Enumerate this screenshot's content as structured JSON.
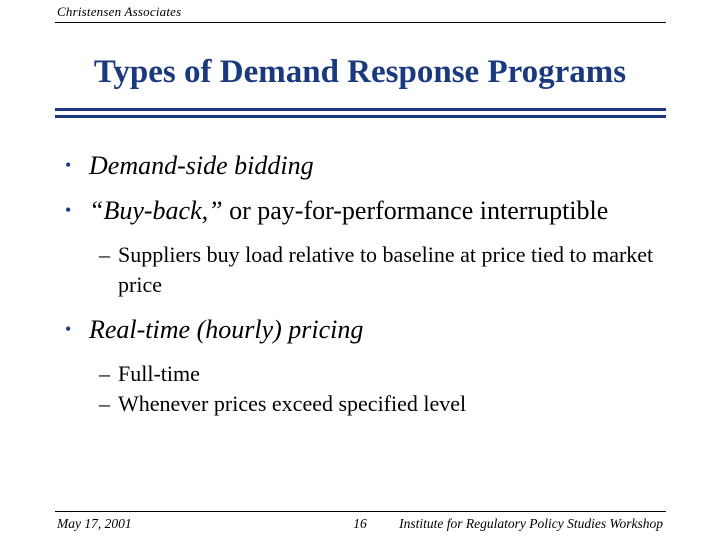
{
  "slide": {
    "company": "Christensen Associates",
    "title": "Types of Demand Response Programs",
    "markers": {
      "bullet": "•",
      "dash": "–"
    },
    "bullets": [
      {
        "level": 1,
        "segments": [
          {
            "text": "Demand-side bidding",
            "italic": true
          }
        ]
      },
      {
        "level": 1,
        "segments": [
          {
            "text": "“Buy-back,”",
            "italic": true
          },
          {
            "text": " or pay-for-performance interruptible",
            "italic": false
          }
        ]
      },
      {
        "level": 2,
        "segments": [
          {
            "text": "Suppliers buy load relative to baseline at price tied to market price",
            "italic": false
          }
        ]
      },
      {
        "level": 1,
        "segments": [
          {
            "text": "Real-time (hourly) pricing",
            "italic": true
          }
        ]
      },
      {
        "level": 2,
        "segments": [
          {
            "text": "Full-time",
            "italic": false
          }
        ]
      },
      {
        "level": 2,
        "segments": [
          {
            "text": "Whenever prices exceed specified level",
            "italic": false
          }
        ]
      }
    ],
    "footer": {
      "date": "May 17, 2001",
      "page_number": "16",
      "event": "Institute for Regulatory Policy Studies Workshop"
    },
    "colors": {
      "accent": "#1b3a7e",
      "text": "#000000",
      "background": "#ffffff"
    }
  }
}
